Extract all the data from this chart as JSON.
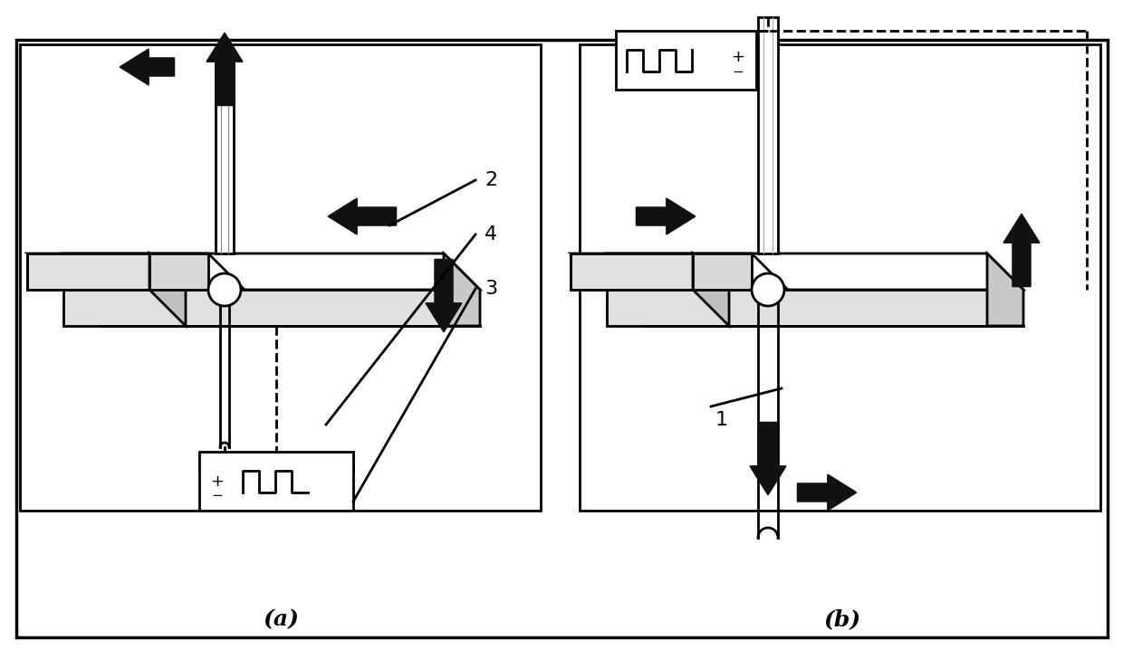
{
  "bg_color": "#ffffff",
  "lc": "#000000",
  "ac": "#1a1a1a",
  "label_a": "(a)",
  "label_b": "(b)",
  "label_1": "1",
  "label_2": "2",
  "label_3": "3",
  "label_4": "4",
  "figsize": [
    12.4,
    7.39
  ],
  "dpi": 100
}
